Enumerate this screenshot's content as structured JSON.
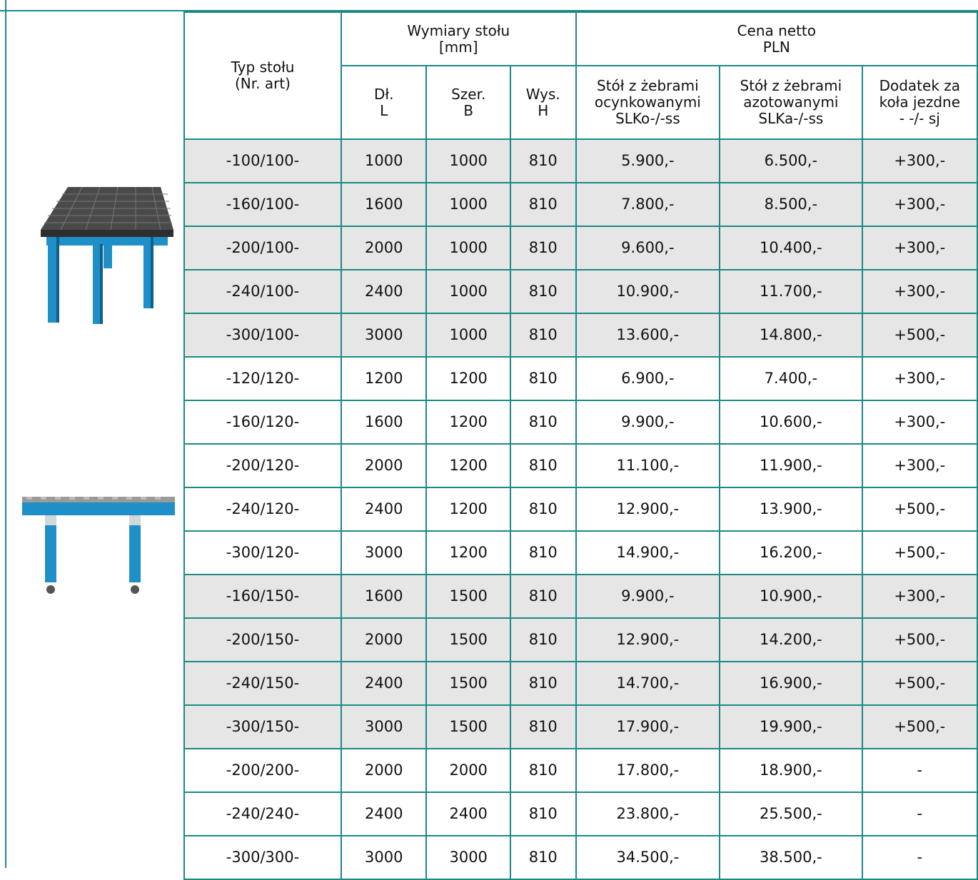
{
  "header": {
    "type": "Typ stołu\n(Nr. art)",
    "dims_group": "Wymiary stołu\n[mm]",
    "price_group": "Cena netto\nPLN",
    "len": "Dł.\nL",
    "width": "Szer.\nB",
    "height": "Wys.\nH",
    "price_o": "Stół z żebrami\nocynkowanymi\nSLKo-/-ss",
    "price_a": "Stół z żebrami\nazotowanymi\nSLKa-/-ss",
    "wheels": "Dodatek za\nkoła jezdne\n- -/- sj"
  },
  "images": {
    "table_square": "welding-table-square-image",
    "table_wheels": "welding-table-wheels-image",
    "accent_color": "#1f8fc7",
    "line_color": "#1a8a82"
  },
  "rows": [
    {
      "type": "-100/100-",
      "l": "1000",
      "b": "1000",
      "h": "810",
      "po": "5.900,-",
      "pa": "6.500,-",
      "w": "+300,-"
    },
    {
      "type": "-160/100-",
      "l": "1600",
      "b": "1000",
      "h": "810",
      "po": "7.800,-",
      "pa": "8.500,-",
      "w": "+300,-"
    },
    {
      "type": "-200/100-",
      "l": "2000",
      "b": "1000",
      "h": "810",
      "po": "9.600,-",
      "pa": "10.400,-",
      "w": "+300,-"
    },
    {
      "type": "-240/100-",
      "l": "2400",
      "b": "1000",
      "h": "810",
      "po": "10.900,-",
      "pa": "11.700,-",
      "w": "+300,-"
    },
    {
      "type": "-300/100-",
      "l": "3000",
      "b": "1000",
      "h": "810",
      "po": "13.600,-",
      "pa": "14.800,-",
      "w": "+500,-"
    },
    {
      "type": "-120/120-",
      "l": "1200",
      "b": "1200",
      "h": "810",
      "po": "6.900,-",
      "pa": "7.400,-",
      "w": "+300,-"
    },
    {
      "type": "-160/120-",
      "l": "1600",
      "b": "1200",
      "h": "810",
      "po": "9.900,-",
      "pa": "10.600,-",
      "w": "+300,-"
    },
    {
      "type": "-200/120-",
      "l": "2000",
      "b": "1200",
      "h": "810",
      "po": "11.100,-",
      "pa": "11.900,-",
      "w": "+300,-"
    },
    {
      "type": "-240/120-",
      "l": "2400",
      "b": "1200",
      "h": "810",
      "po": "12.900,-",
      "pa": "13.900,-",
      "w": "+500,-"
    },
    {
      "type": "-300/120-",
      "l": "3000",
      "b": "1200",
      "h": "810",
      "po": "14.900,-",
      "pa": "16.200,-",
      "w": "+500,-"
    },
    {
      "type": "-160/150-",
      "l": "1600",
      "b": "1500",
      "h": "810",
      "po": "9.900,-",
      "pa": "10.900,-",
      "w": "+300,-"
    },
    {
      "type": "-200/150-",
      "l": "2000",
      "b": "1500",
      "h": "810",
      "po": "12.900,-",
      "pa": "14.200,-",
      "w": "+500,-"
    },
    {
      "type": "-240/150-",
      "l": "2400",
      "b": "1500",
      "h": "810",
      "po": "14.700,-",
      "pa": "16.900,-",
      "w": "+500,-"
    },
    {
      "type": "-300/150-",
      "l": "3000",
      "b": "1500",
      "h": "810",
      "po": "17.900,-",
      "pa": "19.900,-",
      "w": "+500,-"
    },
    {
      "type": "-200/200-",
      "l": "2000",
      "b": "2000",
      "h": "810",
      "po": "17.800,-",
      "pa": "18.900,-",
      "w": "-"
    },
    {
      "type": "-240/240-",
      "l": "2400",
      "b": "2400",
      "h": "810",
      "po": "23.800,-",
      "pa": "25.500,-",
      "w": "-"
    },
    {
      "type": "-300/300-",
      "l": "3000",
      "b": "3000",
      "h": "810",
      "po": "34.500,-",
      "pa": "38.500,-",
      "w": "-"
    }
  ]
}
